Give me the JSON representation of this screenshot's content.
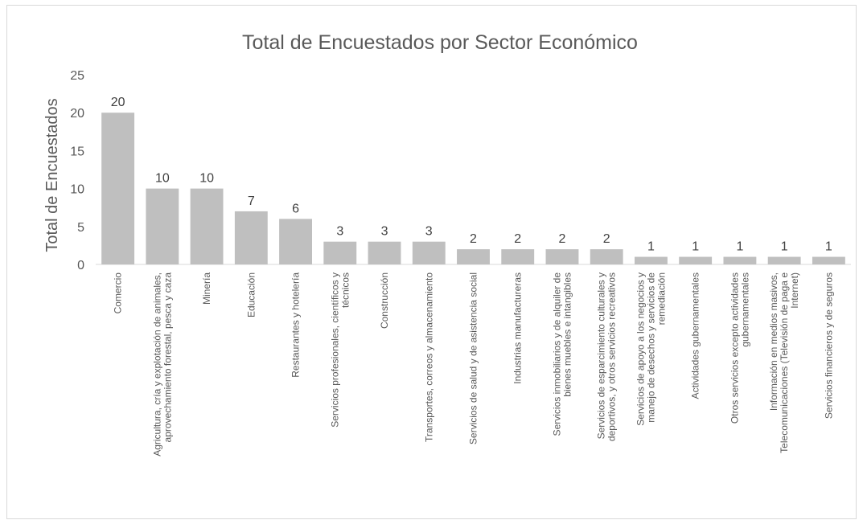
{
  "chart_data": {
    "type": "bar",
    "title": "Total de Encuestados por Sector Económico",
    "xlabel": "",
    "ylabel": "Total de Encuestados",
    "ylim": [
      0,
      25
    ],
    "yticks": [
      0,
      5,
      10,
      15,
      20,
      25
    ],
    "grid": false,
    "legend": "none",
    "bar_color": "#bfbfbf",
    "categories": [
      [
        "Comercio"
      ],
      [
        "Agricultura, cría y explotación de animales,",
        "aprovechamiento forestal, pesca y caza"
      ],
      [
        "Minería"
      ],
      [
        "Educación"
      ],
      [
        "Restaurantes y hotelería"
      ],
      [
        "Servicios profesionales, científicos y",
        "técnicos"
      ],
      [
        "Construcción"
      ],
      [
        "Transportes, correos y almacenamiento"
      ],
      [
        "Servicios de salud y de asistencia social"
      ],
      [
        "Industrias manufactureras"
      ],
      [
        "Servicios inmobiliarios y de alquiler de",
        "bienes muebles e intangibles"
      ],
      [
        "Servicios de esparcimiento culturales y",
        "deportivos, y otros servicios recreativos"
      ],
      [
        "Servicios de apoyo a los negocios y",
        "manejo de desechos y servicios de",
        "remediación"
      ],
      [
        "Actividades gubernamentales"
      ],
      [
        "Otros servicios excepto actividades",
        "gubernamentales"
      ],
      [
        "Información en medios masivos,",
        "Telecomunicaciones (Televisión de paga e",
        "Internet)"
      ],
      [
        "Servicios financieros y de seguros"
      ]
    ],
    "values": [
      20,
      10,
      10,
      7,
      6,
      3,
      3,
      3,
      2,
      2,
      2,
      2,
      1,
      1,
      1,
      1,
      1
    ],
    "data_labels": [
      "20",
      "10",
      "10",
      "7",
      "6",
      "3",
      "3",
      "3",
      "2",
      "2",
      "2",
      "2",
      "1",
      "1",
      "1",
      "1",
      "1"
    ]
  }
}
